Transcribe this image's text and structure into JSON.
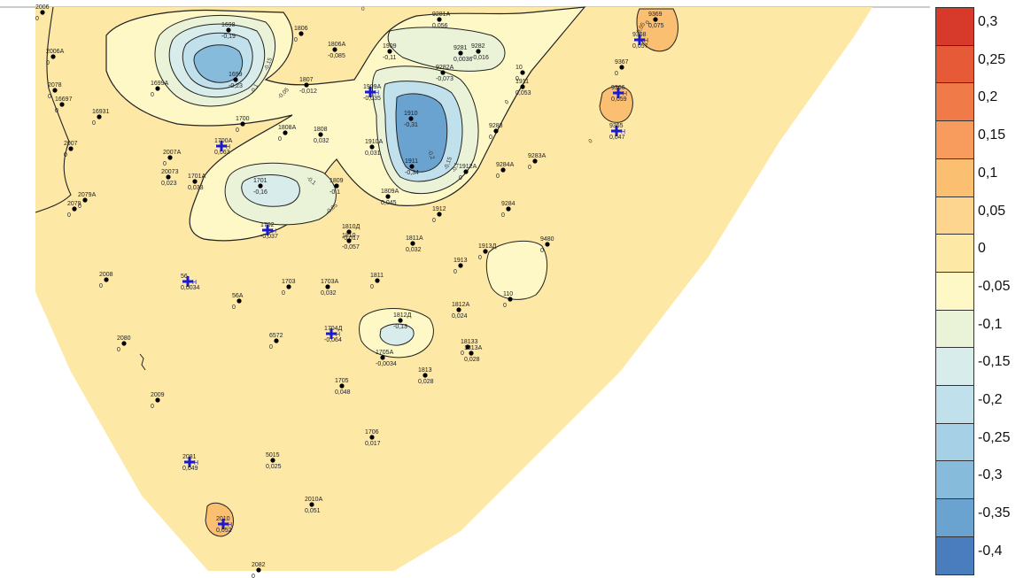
{
  "legend": {
    "levels": [
      {
        "label": "0,3",
        "color": "#d73a2a"
      },
      {
        "label": "0,25",
        "color": "#e65a38"
      },
      {
        "label": "0,2",
        "color": "#f07a48"
      },
      {
        "label": "0,15",
        "color": "#f79c5c"
      },
      {
        "label": "0,1",
        "color": "#fbbf72"
      },
      {
        "label": "0,05",
        "color": "#fdd58e"
      },
      {
        "label": "0",
        "color": "#fde8a6"
      },
      {
        "label": "-0,05",
        "color": "#fdf8c6"
      },
      {
        "label": "-0,1",
        "color": "#eaf3d8"
      },
      {
        "label": "-0,15",
        "color": "#d8ecec"
      },
      {
        "label": "-0,2",
        "color": "#c0e0ec"
      },
      {
        "label": "-0,25",
        "color": "#a5d0e6"
      },
      {
        "label": "-0,3",
        "color": "#86bbdc"
      },
      {
        "label": "-0,35",
        "color": "#6aa2d0"
      },
      {
        "label": "-0,4",
        "color": "#4a7dbe"
      }
    ]
  },
  "contour_labels": [
    "0",
    "-0,1",
    "-0,15",
    "-0,05",
    "0,05",
    "-0,2",
    "-0,25"
  ],
  "wells": [
    {
      "name": "2006",
      "value": "0"
    },
    {
      "name": "2006A",
      "value": "0"
    },
    {
      "name": "1698",
      "value": "-0,19"
    },
    {
      "name": "1806",
      "value": "0"
    },
    {
      "name": "9281A",
      "value": "0,056"
    },
    {
      "name": "1806A",
      "value": "-0,085"
    },
    {
      "name": "1909",
      "value": "-0,11"
    },
    {
      "name": "9281",
      "value": "0,0036"
    },
    {
      "name": "9282",
      "value": "-0,016"
    },
    {
      "name": "1699",
      "value": "-0,23"
    },
    {
      "name": "2078",
      "value": "0"
    },
    {
      "name": "1699A",
      "value": "0"
    },
    {
      "name": "1807",
      "value": "-0,012"
    },
    {
      "name": "9282A",
      "value": "-0,073"
    },
    {
      "name": "10",
      "value": "0"
    },
    {
      "name": "1909A",
      "value": "-0,035"
    },
    {
      "name": "1911",
      "value": "0,053"
    },
    {
      "name": "16697",
      "value": "0"
    },
    {
      "name": "16931",
      "value": "0"
    },
    {
      "name": "1910",
      "value": "-0,31"
    },
    {
      "name": "1700",
      "value": "0"
    },
    {
      "name": "1808A",
      "value": "0"
    },
    {
      "name": "1808",
      "value": "0,032"
    },
    {
      "name": "9283",
      "value": "0"
    },
    {
      "name": "2007",
      "value": "0"
    },
    {
      "name": "2007A",
      "value": "0"
    },
    {
      "name": "1700A",
      "value": "0,063"
    },
    {
      "name": "1910A",
      "value": "0,031"
    },
    {
      "name": "9283A",
      "value": "0"
    },
    {
      "name": "20073",
      "value": "0,023"
    },
    {
      "name": "1701A",
      "value": "0,033"
    },
    {
      "name": "1701",
      "value": "-0,16"
    },
    {
      "name": "1809",
      "value": "-0,1"
    },
    {
      "name": "1911",
      "value": "-0,34"
    },
    {
      "name": "1912A",
      "value": "0"
    },
    {
      "name": "9284A",
      "value": "0"
    },
    {
      "name": "1809A",
      "value": "0,045"
    },
    {
      "name": "2079A",
      "value": "0"
    },
    {
      "name": "2079",
      "value": "0"
    },
    {
      "name": "1912",
      "value": "0"
    },
    {
      "name": "9284",
      "value": "0"
    },
    {
      "name": "1702",
      "value": "-0,037"
    },
    {
      "name": "1810Д",
      "value": "-0,017"
    },
    {
      "name": "1810",
      "value": "-0,057"
    },
    {
      "name": "1811A",
      "value": "0,032"
    },
    {
      "name": "1913Д",
      "value": "0"
    },
    {
      "name": "9480",
      "value": "0"
    },
    {
      "name": "1913",
      "value": "0"
    },
    {
      "name": "2008",
      "value": "0"
    },
    {
      "name": "56",
      "value": "0,0034"
    },
    {
      "name": "1703",
      "value": "0"
    },
    {
      "name": "1703A",
      "value": "0,032"
    },
    {
      "name": "1811",
      "value": "0"
    },
    {
      "name": "110",
      "value": "0"
    },
    {
      "name": "56A",
      "value": "0"
    },
    {
      "name": "1812A",
      "value": "0,024"
    },
    {
      "name": "1812Д",
      "value": "-0,13"
    },
    {
      "name": "1704Д",
      "value": "-0,064"
    },
    {
      "name": "6572",
      "value": "0"
    },
    {
      "name": "2080",
      "value": "0"
    },
    {
      "name": "18133",
      "value": "0"
    },
    {
      "name": "1813A",
      "value": "0,028"
    },
    {
      "name": "1705A",
      "value": "-0,0034"
    },
    {
      "name": "1813",
      "value": "0,028"
    },
    {
      "name": "1705",
      "value": "0,048"
    },
    {
      "name": "2009",
      "value": "0"
    },
    {
      "name": "1706",
      "value": "0,017"
    },
    {
      "name": "2081",
      "value": "0,049"
    },
    {
      "name": "5015",
      "value": "0,025"
    },
    {
      "name": "2010A",
      "value": "0,051"
    },
    {
      "name": "2010",
      "value": "0,052"
    },
    {
      "name": "2082",
      "value": "0"
    },
    {
      "name": "9367",
      "value": "0"
    },
    {
      "name": "9366",
      "value": "0,059"
    },
    {
      "name": "9365",
      "value": "0,047"
    },
    {
      "name": "9368",
      "value": "0,057"
    },
    {
      "name": "9369",
      "value": "0,075"
    }
  ]
}
